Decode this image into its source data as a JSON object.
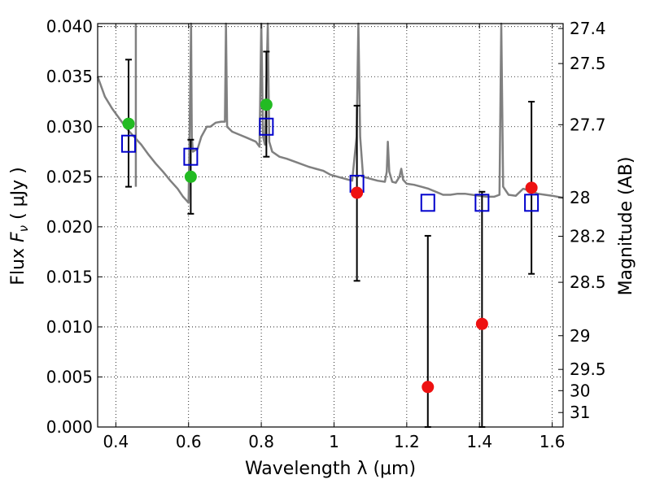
{
  "chart_data": {
    "type": "scatter",
    "xlabel": "Wavelength  λ (μm)",
    "ylabel": "Flux  F_ν  ( μJy )",
    "ylabel_parts": {
      "pre": "Flux ",
      "sym": "F",
      "sub": "ν",
      "post": "  ( μJy )"
    },
    "y2label": "Magnitude (AB)",
    "xlim": [
      0.35,
      1.63
    ],
    "ylim": [
      0.0,
      0.0403
    ],
    "grid": true,
    "x_ticks": [
      {
        "value": 0.4,
        "label": "0.4"
      },
      {
        "value": 0.6,
        "label": "0.6"
      },
      {
        "value": 0.8,
        "label": "0.8"
      },
      {
        "value": 1.0,
        "label": "1"
      },
      {
        "value": 1.2,
        "label": "1.2"
      },
      {
        "value": 1.4,
        "label": "1.4"
      },
      {
        "value": 1.6,
        "label": "1.6"
      }
    ],
    "y_ticks": [
      {
        "value": 0.0,
        "label": "0.000"
      },
      {
        "value": 0.005,
        "label": "0.005"
      },
      {
        "value": 0.01,
        "label": "0.010"
      },
      {
        "value": 0.015,
        "label": "0.015"
      },
      {
        "value": 0.02,
        "label": "0.020"
      },
      {
        "value": 0.025,
        "label": "0.025"
      },
      {
        "value": 0.03,
        "label": "0.030"
      },
      {
        "value": 0.035,
        "label": "0.035"
      },
      {
        "value": 0.04,
        "label": "0.040"
      }
    ],
    "magnitude_ticks": [
      "27.4",
      "27.5",
      "27.7",
      "28",
      "28.2",
      "28.5",
      "29",
      "29.5",
      "30",
      "31"
    ],
    "colors": {
      "spectrum": "#808080",
      "model": "#0000cc",
      "detected": "#22bb22",
      "upper": "#ee1111",
      "errorbar": "#000000"
    },
    "spectrum": [
      [
        0.35,
        0.035
      ],
      [
        0.37,
        0.033
      ],
      [
        0.39,
        0.0318
      ],
      [
        0.41,
        0.0308
      ],
      [
        0.43,
        0.0298
      ],
      [
        0.45,
        0.029
      ],
      [
        0.47,
        0.0282
      ],
      [
        0.49,
        0.0272
      ],
      [
        0.51,
        0.0263
      ],
      [
        0.53,
        0.0255
      ],
      [
        0.55,
        0.0246
      ],
      [
        0.57,
        0.0238
      ],
      [
        0.585,
        0.023
      ],
      [
        0.595,
        0.0226
      ],
      [
        0.6,
        0.0224
      ],
      [
        0.605,
        0.035
      ],
      [
        0.607,
        0.0404
      ],
      [
        0.609,
        0.029
      ],
      [
        0.612,
        0.0275
      ],
      [
        0.625,
        0.0278
      ],
      [
        0.635,
        0.029
      ],
      [
        0.65,
        0.03
      ],
      [
        0.66,
        0.03
      ],
      [
        0.675,
        0.0304
      ],
      [
        0.69,
        0.0305
      ],
      [
        0.7,
        0.0305
      ],
      [
        0.703,
        0.0404
      ],
      [
        0.706,
        0.03
      ],
      [
        0.72,
        0.0295
      ],
      [
        0.74,
        0.0292
      ],
      [
        0.76,
        0.0289
      ],
      [
        0.785,
        0.0285
      ],
      [
        0.795,
        0.028
      ],
      [
        0.8,
        0.0404
      ],
      [
        0.805,
        0.029
      ],
      [
        0.81,
        0.0282
      ],
      [
        0.818,
        0.0404
      ],
      [
        0.822,
        0.0285
      ],
      [
        0.83,
        0.0275
      ],
      [
        0.85,
        0.027
      ],
      [
        0.87,
        0.0268
      ],
      [
        0.9,
        0.0264
      ],
      [
        0.93,
        0.026
      ],
      [
        0.95,
        0.0258
      ],
      [
        0.97,
        0.0256
      ],
      [
        0.99,
        0.0252
      ],
      [
        1.01,
        0.025
      ],
      [
        1.03,
        0.0248
      ],
      [
        1.05,
        0.0246
      ],
      [
        1.062,
        0.029
      ],
      [
        1.067,
        0.0404
      ],
      [
        1.072,
        0.029
      ],
      [
        1.08,
        0.025
      ],
      [
        1.1,
        0.0248
      ],
      [
        1.12,
        0.0246
      ],
      [
        1.14,
        0.0245
      ],
      [
        1.145,
        0.0255
      ],
      [
        1.148,
        0.0285
      ],
      [
        1.152,
        0.0255
      ],
      [
        1.16,
        0.0245
      ],
      [
        1.17,
        0.0244
      ],
      [
        1.18,
        0.025
      ],
      [
        1.185,
        0.0258
      ],
      [
        1.19,
        0.0247
      ],
      [
        1.2,
        0.0243
      ],
      [
        1.22,
        0.0242
      ],
      [
        1.24,
        0.024
      ],
      [
        1.26,
        0.0238
      ],
      [
        1.28,
        0.0235
      ],
      [
        1.3,
        0.0232
      ],
      [
        1.32,
        0.0232
      ],
      [
        1.34,
        0.0233
      ],
      [
        1.36,
        0.0233
      ],
      [
        1.38,
        0.0232
      ],
      [
        1.4,
        0.0231
      ],
      [
        1.42,
        0.023
      ],
      [
        1.44,
        0.023
      ],
      [
        1.455,
        0.0232
      ],
      [
        1.46,
        0.0404
      ],
      [
        1.465,
        0.024
      ],
      [
        1.48,
        0.0232
      ],
      [
        1.5,
        0.0231
      ],
      [
        1.52,
        0.0238
      ],
      [
        1.54,
        0.0236
      ],
      [
        1.56,
        0.0233
      ],
      [
        1.58,
        0.0232
      ],
      [
        1.6,
        0.0231
      ],
      [
        1.63,
        0.0229
      ]
    ],
    "spectrum_spikes": [
      [
        0.455,
        0.0404
      ]
    ],
    "model_points": [
      {
        "x": 0.435,
        "y": 0.0283
      },
      {
        "x": 0.606,
        "y": 0.027
      },
      {
        "x": 0.814,
        "y": 0.03
      },
      {
        "x": 1.063,
        "y": 0.0243
      },
      {
        "x": 1.258,
        "y": 0.0224
      },
      {
        "x": 1.407,
        "y": 0.0224
      },
      {
        "x": 1.543,
        "y": 0.0224
      }
    ],
    "detected_points": [
      {
        "x": 0.435,
        "y": 0.0303,
        "yerr_low": 0.024,
        "yerr_high": 0.0367
      },
      {
        "x": 0.606,
        "y": 0.025,
        "yerr_low": 0.0213,
        "yerr_high": 0.0287
      },
      {
        "x": 0.814,
        "y": 0.0322,
        "yerr_low": 0.027,
        "yerr_high": 0.0375
      }
    ],
    "upper_points": [
      {
        "x": 1.063,
        "y": 0.0234,
        "yerr_low": 0.0146,
        "yerr_high": 0.0321
      },
      {
        "x": 1.258,
        "y": 0.004,
        "yerr_low": 0.0,
        "yerr_high": 0.0191
      },
      {
        "x": 1.407,
        "y": 0.0103,
        "yerr_low": 0.0,
        "yerr_high": 0.0235
      },
      {
        "x": 1.543,
        "y": 0.0239,
        "yerr_low": 0.0153,
        "yerr_high": 0.0325
      }
    ]
  }
}
